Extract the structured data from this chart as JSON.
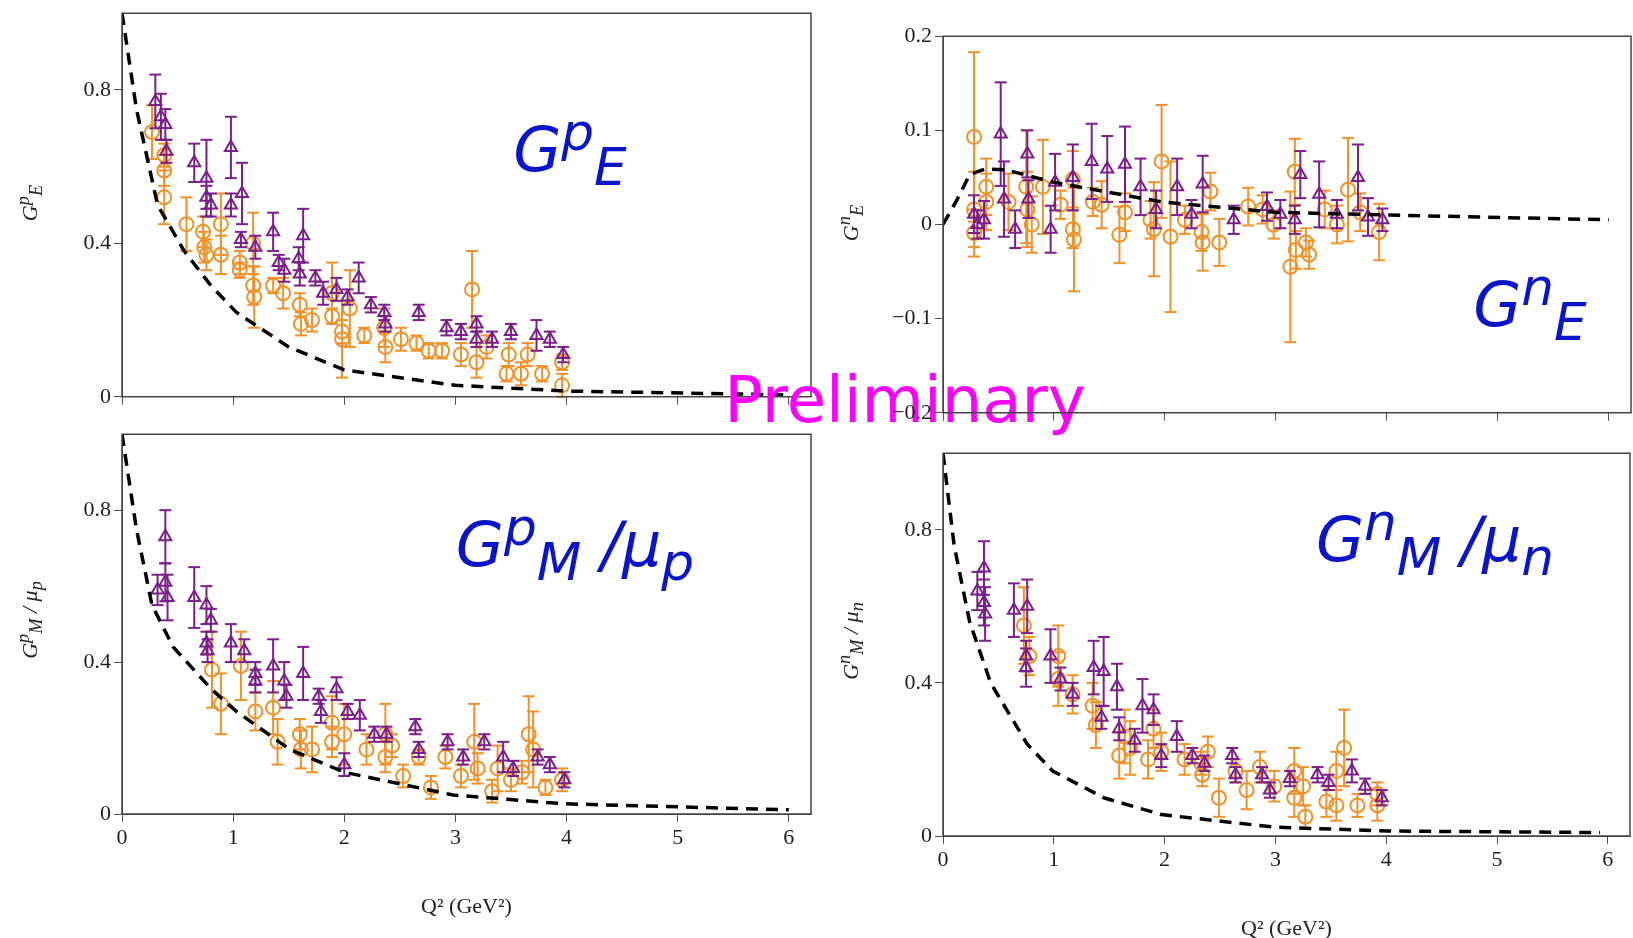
{
  "chart_data": [
    {
      "type": "scatter",
      "ylabel": "G$^{p}$$_{E}$",
      "annotations": [
        "G$^{p}$$_{E}$",
        "Preliminary"
      ],
      "xlim": [
        0,
        6.2
      ],
      "ylim": [
        0,
        1
      ],
      "xticks": [
        0,
        1,
        2,
        3,
        4,
        5,
        6
      ],
      "yticks": [
        0,
        0.4,
        0.8
      ],
      "tick_labels": "y",
      "series": [
        {
          "type": "line",
          "color": "#000000",
          "marker": "none",
          "line_style": "dashed",
          "x": [
            0,
            0.13,
            0.32,
            0.56,
            0.8,
            1.03,
            1.5,
            2.0,
            3.0,
            4.0,
            6.0
          ],
          "values": [
            1.0,
            0.75,
            0.5,
            0.38,
            0.29,
            0.22,
            0.13,
            0.07,
            0.03,
            0.015,
            0.005
          ]
        },
        {
          "color": "#7b1f8a",
          "marker": "triangle",
          "x": [
            0.3,
            0.35,
            0.39,
            0.4,
            0.65,
            0.76,
            0.76,
            0.8,
            0.98,
            0.98,
            1.08,
            1.07,
            1.2,
            1.36,
            1.41,
            1.46,
            1.63,
            1.59,
            1.6,
            1.74,
            1.81,
            1.93,
            2.03,
            2.13,
            2.24,
            2.36,
            2.37,
            2.67,
            2.92,
            3.05,
            3.19,
            3.19,
            3.33,
            3.5,
            3.73,
            3.85,
            3.97
          ],
          "values": [
            0.77,
            0.73,
            0.71,
            0.64,
            0.61,
            0.57,
            0.52,
            0.5,
            0.65,
            0.5,
            0.53,
            0.41,
            0.39,
            0.43,
            0.35,
            0.33,
            0.42,
            0.36,
            0.32,
            0.31,
            0.27,
            0.28,
            0.26,
            0.31,
            0.24,
            0.22,
            0.19,
            0.22,
            0.18,
            0.17,
            0.19,
            0.15,
            0.15,
            0.17,
            0.16,
            0.15,
            0.11
          ],
          "errors": [
            0.07,
            0.06,
            0.04,
            0.03,
            0.05,
            0.1,
            0.03,
            0.03,
            0.08,
            0.03,
            0.08,
            0.02,
            0.03,
            0.05,
            0.02,
            0.03,
            0.07,
            0.03,
            0.03,
            0.02,
            0.03,
            0.03,
            0.02,
            0.04,
            0.02,
            0.02,
            0.02,
            0.02,
            0.02,
            0.02,
            0.02,
            0.02,
            0.02,
            0.02,
            0.04,
            0.02,
            0.02
          ]
        },
        {
          "color": "#f0922a",
          "marker": "circle",
          "x": [
            0.27,
            0.38,
            0.38,
            0.38,
            0.58,
            0.73,
            0.74,
            0.76,
            0.89,
            0.89,
            1.06,
            1.06,
            1.18,
            1.18,
            1.19,
            1.36,
            1.45,
            1.6,
            1.61,
            1.71,
            1.89,
            1.89,
            1.98,
            1.98,
            2.05,
            2.18,
            2.36,
            2.37,
            2.51,
            2.65,
            2.76,
            2.88,
            3.05,
            3.15,
            3.19,
            3.28,
            3.48,
            3.46,
            3.59,
            3.65,
            3.78,
            3.96,
            3.96
          ],
          "values": [
            0.69,
            0.63,
            0.59,
            0.52,
            0.45,
            0.43,
            0.39,
            0.37,
            0.45,
            0.37,
            0.35,
            0.33,
            0.4,
            0.29,
            0.26,
            0.29,
            0.27,
            0.24,
            0.19,
            0.2,
            0.27,
            0.21,
            0.17,
            0.15,
            0.23,
            0.16,
            0.18,
            0.13,
            0.15,
            0.14,
            0.12,
            0.12,
            0.11,
            0.28,
            0.09,
            0.13,
            0.11,
            0.06,
            0.06,
            0.11,
            0.06,
            0.09,
            0.03
          ],
          "errors": [
            0.07,
            0.03,
            0.04,
            0.07,
            0.07,
            0.04,
            0.04,
            0.04,
            0.08,
            0.05,
            0.03,
            0.02,
            0.08,
            0.05,
            0.08,
            0.02,
            0.04,
            0.03,
            0.03,
            0.03,
            0.08,
            0.02,
            0.03,
            0.1,
            0.1,
            0.02,
            0.05,
            0.04,
            0.03,
            0.02,
            0.02,
            0.02,
            0.03,
            0.1,
            0.04,
            0.03,
            0.03,
            0.02,
            0.03,
            0.03,
            0.02,
            0.02,
            0.03
          ]
        }
      ]
    },
    {
      "type": "scatter",
      "ylabel": "G$^{n}$$_{E}$",
      "annotations": [
        "G$^{n}$$_{E}$"
      ],
      "xlim": [
        0,
        6.2
      ],
      "ylim": [
        -0.2,
        0.2
      ],
      "xticks": [
        0,
        1,
        2,
        3,
        4,
        5,
        6
      ],
      "yticks": [
        {
          "value": -0.2,
          "label": "−0.2"
        },
        {
          "value": -0.1,
          "label": "−0.1"
        },
        0,
        0.1,
        0.2
      ],
      "tick_labels": "y",
      "series": [
        {
          "type": "line",
          "color": "#000000",
          "marker": "none",
          "line_style": "dashed",
          "x": [
            0,
            0.13,
            0.24,
            0.38,
            0.57,
            0.99,
            1.97,
            2.99,
            4.02,
            6.0
          ],
          "values": [
            0,
            0.027,
            0.053,
            0.059,
            0.058,
            0.045,
            0.024,
            0.013,
            0.01,
            0.005
          ]
        },
        {
          "color": "#7b1f8a",
          "marker": "triangle",
          "x": [
            0.28,
            0.31,
            0.37,
            0.52,
            0.55,
            0.65,
            0.76,
            0.77,
            0.97,
            1.01,
            1.17,
            1.34,
            1.48,
            1.64,
            1.78,
            1.92,
            2.11,
            2.24,
            2.34,
            2.62,
            2.92,
            3.04,
            3.17,
            3.22,
            3.39,
            3.55,
            3.74,
            3.83,
            3.96
          ],
          "values": [
            0.011,
            0.0,
            0.005,
            0.096,
            0.027,
            -0.005,
            0.075,
            0.027,
            -0.005,
            0.045,
            0.05,
            0.067,
            0.059,
            0.064,
            0.04,
            0.016,
            0.04,
            0.011,
            0.043,
            0.005,
            0.019,
            0.011,
            0.005,
            0.053,
            0.032,
            0.011,
            0.05,
            0.008,
            0.005
          ],
          "errors": [
            0.02,
            0.015,
            0.02,
            0.055,
            0.04,
            0.02,
            0.025,
            0.02,
            0.025,
            0.03,
            0.035,
            0.04,
            0.035,
            0.04,
            0.03,
            0.02,
            0.03,
            0.015,
            0.03,
            0.015,
            0.015,
            0.015,
            0.015,
            0.025,
            0.035,
            0.015,
            0.035,
            0.02,
            0.012
          ]
        },
        {
          "color": "#f0922a",
          "marker": "circle",
          "x": [
            0.28,
            0.28,
            0.28,
            0.39,
            0.39,
            0.59,
            0.75,
            0.76,
            0.8,
            0.9,
            1.06,
            1.17,
            1.17,
            1.18,
            1.35,
            1.43,
            1.59,
            1.64,
            1.87,
            1.9,
            1.97,
            2.05,
            2.18,
            2.33,
            2.34,
            2.41,
            2.49,
            2.75,
            2.88,
            2.98,
            3.13,
            3.17,
            3.18,
            3.27,
            3.3,
            3.44,
            3.55,
            3.65,
            3.76,
            3.93
          ],
          "values": [
            0.093,
            0.016,
            -0.009,
            0.04,
            0.024,
            0.024,
            0.04,
            0.016,
            0.0,
            0.04,
            0.021,
            0.048,
            -0.005,
            -0.016,
            0.024,
            0.021,
            -0.011,
            0.013,
            0.005,
            -0.005,
            0.067,
            -0.013,
            0.005,
            -0.008,
            -0.019,
            0.035,
            -0.019,
            0.019,
            0.016,
            0.0,
            -0.045,
            0.056,
            -0.027,
            -0.019,
            -0.032,
            0.016,
            0.0,
            0.037,
            0.013,
            -0.008
          ],
          "errors": [
            0.09,
            0.04,
            0.025,
            0.03,
            0.03,
            0.03,
            0.06,
            0.04,
            0.03,
            0.05,
            0.015,
            0.03,
            0.02,
            0.055,
            0.015,
            0.025,
            0.03,
            0.02,
            0.02,
            0.05,
            0.06,
            0.08,
            0.015,
            0.02,
            0.03,
            0.02,
            0.025,
            0.02,
            0.015,
            0.015,
            0.08,
            0.035,
            0.02,
            0.015,
            0.015,
            0.02,
            0.02,
            0.055,
            0.02,
            0.03
          ]
        }
      ]
    },
    {
      "type": "scatter",
      "ylabel": "G$^{p}$$_{M}$ / μ$_{p}$",
      "xlabel": "Q² (GeV²)",
      "annotations": [
        "G$^{p}$$_{M}$ /μ$_{p}$"
      ],
      "xlim": [
        0,
        6.2
      ],
      "ylim": [
        0,
        1
      ],
      "xticks": [
        0,
        1,
        2,
        3,
        4,
        5,
        6
      ],
      "yticks": [
        0,
        0.4,
        0.8
      ],
      "series": [
        {
          "type": "line",
          "color": "#000000",
          "marker": "none",
          "line_style": "dashed",
          "x": [
            0,
            0.13,
            0.27,
            0.46,
            0.8,
            1.03,
            1.51,
            2.0,
            2.98,
            3.97,
            6.0
          ],
          "values": [
            1.0,
            0.75,
            0.55,
            0.44,
            0.33,
            0.27,
            0.17,
            0.11,
            0.05,
            0.027,
            0.011
          ]
        },
        {
          "color": "#7b1f8a",
          "marker": "triangle",
          "x": [
            0.32,
            0.39,
            0.39,
            0.41,
            0.65,
            0.76,
            0.8,
            0.76,
            0.77,
            0.98,
            1.1,
            1.2,
            1.2,
            1.36,
            1.46,
            1.48,
            1.63,
            1.77,
            1.79,
            1.93,
            2.03,
            2.14,
            2.27,
            2.38,
            2.64,
            2.67,
            2.93,
            3.07,
            3.26,
            3.43,
            3.52,
            3.74,
            3.85,
            3.98,
            2.0
          ],
          "values": [
            0.59,
            0.73,
            0.61,
            0.57,
            0.57,
            0.55,
            0.51,
            0.45,
            0.43,
            0.45,
            0.43,
            0.37,
            0.35,
            0.39,
            0.35,
            0.31,
            0.37,
            0.31,
            0.27,
            0.33,
            0.27,
            0.26,
            0.21,
            0.21,
            0.23,
            0.17,
            0.19,
            0.15,
            0.19,
            0.15,
            0.12,
            0.15,
            0.13,
            0.09,
            0.13
          ],
          "errors": [
            0.04,
            0.07,
            0.05,
            0.06,
            0.08,
            0.05,
            0.03,
            0.03,
            0.03,
            0.05,
            0.03,
            0.03,
            0.03,
            0.07,
            0.05,
            0.03,
            0.07,
            0.02,
            0.03,
            0.03,
            0.02,
            0.04,
            0.02,
            0.02,
            0.02,
            0.02,
            0.02,
            0.02,
            0.02,
            0.04,
            0.02,
            0.02,
            0.02,
            0.02,
            0.03
          ]
        },
        {
          "color": "#f0922a",
          "marker": "circle",
          "x": [
            0.81,
            0.89,
            1.07,
            1.2,
            1.36,
            1.4,
            1.6,
            1.61,
            1.71,
            1.89,
            1.89,
            2.0,
            2.2,
            2.37,
            2.37,
            2.43,
            2.53,
            2.67,
            2.78,
            2.91,
            3.05,
            3.17,
            3.2,
            3.33,
            3.38,
            3.5,
            3.6,
            3.66,
            3.7,
            3.81,
            3.96
          ],
          "values": [
            0.38,
            0.29,
            0.39,
            0.27,
            0.28,
            0.19,
            0.21,
            0.17,
            0.17,
            0.24,
            0.19,
            0.21,
            0.17,
            0.21,
            0.15,
            0.18,
            0.1,
            0.15,
            0.07,
            0.15,
            0.1,
            0.19,
            0.12,
            0.06,
            0.12,
            0.09,
            0.11,
            0.21,
            0.17,
            0.07,
            0.09
          ],
          "errors": [
            0.1,
            0.08,
            0.09,
            0.05,
            0.07,
            0.06,
            0.04,
            0.05,
            0.06,
            0.07,
            0.04,
            0.08,
            0.04,
            0.08,
            0.04,
            0.03,
            0.03,
            0.02,
            0.03,
            0.03,
            0.03,
            0.1,
            0.04,
            0.03,
            0.06,
            0.03,
            0.03,
            0.1,
            0.1,
            0.02,
            0.03
          ]
        }
      ]
    },
    {
      "type": "scatter",
      "ylabel": "G$^{n}$$_{M}$ / μ$_{n}$",
      "xlabel": "Q² (GeV²)",
      "annotations": [
        "G$^{n}$$_{M}$ /μ$_{n}$"
      ],
      "xlim": [
        0,
        6.2
      ],
      "ylim": [
        0,
        1
      ],
      "xticks": [
        0,
        1,
        2,
        3,
        4,
        5,
        6
      ],
      "yticks": [
        0,
        0.4,
        0.8
      ],
      "series": [
        {
          "type": "line",
          "color": "#000000",
          "marker": "none",
          "line_style": "dashed",
          "x": [
            0,
            0.1,
            0.24,
            0.43,
            0.76,
            0.99,
            1.45,
            1.97,
            2.99,
            4.02,
            5.93
          ],
          "values": [
            1.0,
            0.76,
            0.56,
            0.4,
            0.24,
            0.17,
            0.1,
            0.056,
            0.023,
            0.013,
            0.009
          ]
        },
        {
          "color": "#7b1f8a",
          "marker": "triangle",
          "x": [
            0.31,
            0.37,
            0.37,
            0.38,
            0.64,
            0.76,
            0.75,
            0.75,
            0.97,
            1.06,
            1.17,
            1.36,
            1.45,
            1.43,
            1.57,
            1.59,
            1.73,
            1.8,
            1.9,
            1.97,
            2.11,
            2.25,
            2.36,
            2.61,
            2.64,
            2.88,
            2.95,
            3.13,
            3.38,
            3.48,
            3.69,
            3.81,
            3.96
          ],
          "values": [
            0.64,
            0.7,
            0.61,
            0.58,
            0.59,
            0.6,
            0.47,
            0.44,
            0.47,
            0.41,
            0.37,
            0.44,
            0.43,
            0.31,
            0.39,
            0.28,
            0.25,
            0.34,
            0.33,
            0.21,
            0.26,
            0.21,
            0.19,
            0.21,
            0.16,
            0.16,
            0.12,
            0.15,
            0.16,
            0.14,
            0.17,
            0.13,
            0.1
          ],
          "errors": [
            0.05,
            0.07,
            0.06,
            0.07,
            0.07,
            0.07,
            0.04,
            0.05,
            0.07,
            0.03,
            0.03,
            0.07,
            0.09,
            0.03,
            0.06,
            0.03,
            0.03,
            0.07,
            0.04,
            0.03,
            0.04,
            0.02,
            0.02,
            0.02,
            0.02,
            0.02,
            0.02,
            0.02,
            0.02,
            0.02,
            0.03,
            0.02,
            0.02
          ]
        },
        {
          "color": "#f0922a",
          "marker": "circle",
          "x": [
            0.73,
            0.78,
            1.04,
            1.04,
            1.17,
            1.35,
            1.38,
            1.59,
            1.64,
            1.69,
            1.85,
            1.9,
            1.97,
            2.18,
            2.33,
            2.34,
            2.39,
            2.49,
            2.64,
            2.74,
            2.86,
            2.99,
            3.17,
            3.17,
            3.25,
            3.27,
            3.46,
            3.55,
            3.55,
            3.62,
            3.74,
            3.92,
            3.92
          ],
          "values": [
            0.55,
            0.47,
            0.47,
            0.41,
            0.37,
            0.34,
            0.29,
            0.21,
            0.26,
            0.23,
            0.2,
            0.28,
            0.22,
            0.2,
            0.19,
            0.16,
            0.22,
            0.1,
            0.17,
            0.12,
            0.18,
            0.13,
            0.17,
            0.1,
            0.13,
            0.05,
            0.09,
            0.08,
            0.17,
            0.23,
            0.08,
            0.11,
            0.08
          ],
          "errors": [
            0.1,
            0.05,
            0.08,
            0.07,
            0.05,
            0.06,
            0.06,
            0.06,
            0.07,
            0.07,
            0.05,
            0.05,
            0.05,
            0.04,
            0.03,
            0.03,
            0.04,
            0.05,
            0.03,
            0.05,
            0.04,
            0.04,
            0.06,
            0.05,
            0.05,
            0.03,
            0.04,
            0.04,
            0.05,
            0.1,
            0.03,
            0.03,
            0.04
          ]
        }
      ]
    }
  ]
}
